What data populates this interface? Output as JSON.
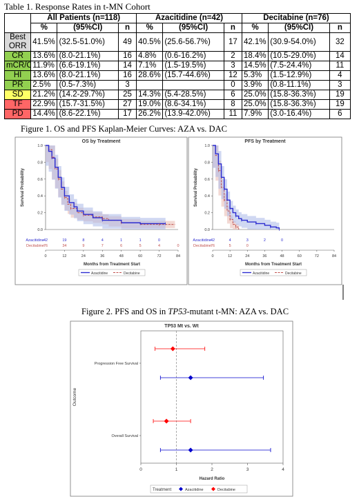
{
  "table": {
    "caption": "Table 1. Response Rates in t-MN Cohort",
    "groups": [
      "All Patients (n=118)",
      "Azacitidine (n=42)",
      "Decitabine (n=76)"
    ],
    "subheaders": [
      "%",
      "(95%CI)",
      "n"
    ],
    "rows": [
      {
        "label": "Best ORR",
        "color": "#d9d9d9",
        "cells": [
          "41.5%",
          "(32.5-51.0%)",
          "49",
          "40.5%",
          "(25.6-56.7%)",
          "17",
          "42.1%",
          "(30.9-54.0%)",
          "32"
        ]
      },
      {
        "label": "CR",
        "color": "#92d050",
        "cells": [
          "13.6%",
          "(8.0-21.1%)",
          "16",
          "4.8%",
          "(0.6-16.2%)",
          "2",
          "18.4%",
          "(10.5-29.0%)",
          "14"
        ]
      },
      {
        "label": "mCR/CRi",
        "color": "#92d050",
        "cells": [
          "11.9%",
          "(6.6-19.1%)",
          "14",
          "7.1%",
          "(1.5-19.5%)",
          "3",
          "14.5%",
          "(7.5-24.4%)",
          "11"
        ]
      },
      {
        "label": "HI",
        "color": "#92d050",
        "cells": [
          "13.6%",
          "(8.0-21.1%)",
          "16",
          "28.6%",
          "(15.7-44.6%)",
          "12",
          "5.3%",
          "(1.5-12.9%)",
          "4"
        ]
      },
      {
        "label": "PR",
        "color": "#92d050",
        "cells": [
          "2.5%",
          "(0.5-7.3%)",
          "3",
          "",
          "",
          "0",
          "3.9%",
          "(0.8-11.1%)",
          "3"
        ]
      },
      {
        "label": "SD",
        "color": "#ffff66",
        "cells": [
          "21.2%",
          "(14.2-29.7%)",
          "25",
          "14.3%",
          "(5.4-28.5%)",
          "6",
          "25.0%",
          "(15.8-36.3%)",
          "19"
        ]
      },
      {
        "label": "TF",
        "color": "#ff6666",
        "cells": [
          "22.9%",
          "(15.7-31.5%)",
          "27",
          "19.0%",
          "(8.6-34.1%)",
          "8",
          "25.0%",
          "(15.8-36.3%)",
          "19"
        ]
      },
      {
        "label": "PD",
        "color": "#ff6666",
        "cells": [
          "14.4%",
          "(8.6-22.1%)",
          "17",
          "26.2%",
          "(13.9-42.0%)",
          "11",
          "7.9%",
          "(3.0-16.4%)",
          "6"
        ]
      }
    ]
  },
  "figure1": {
    "caption": "Figure 1. OS and PFS Kaplan-Meier Curves: AZA vs. DAC",
    "at_risk_labels": [
      "Azacitidine",
      "Decitabine"
    ],
    "legend_labels": [
      "Azacitidine",
      "Decitabine"
    ],
    "colors": {
      "aza": "#2b2bd0",
      "dec": "#c0504d",
      "aza_band": "#a9b8e8",
      "dec_band": "#eab9b0"
    }
  },
  "figure2": {
    "caption_pre": "Figure 2. PFS and OS in ",
    "caption_em": "TP53",
    "caption_post": "-mutant t-MN: AZA vs. DAC",
    "legend_title": "Treatment",
    "legend_labels": [
      "Azacitidine",
      "Decitabine"
    ]
  },
  "chart_data": [
    {
      "type": "line",
      "title": "OS by Treatment",
      "xlabel": "Months from Treatment Start",
      "ylabel": "Survival Probability",
      "xlim": [
        0,
        84
      ],
      "ylim": [
        0,
        1.0
      ],
      "xticks": [
        0,
        12,
        24,
        36,
        48,
        60,
        72,
        84
      ],
      "yticks": [
        0.0,
        0.2,
        0.4,
        0.6,
        0.8,
        1.0
      ],
      "series": [
        {
          "name": "Azacitidine",
          "x": [
            0,
            2,
            4,
            6,
            8,
            10,
            12,
            15,
            18,
            20,
            24,
            30,
            36,
            48,
            60,
            72,
            76
          ],
          "y": [
            1.0,
            0.93,
            0.85,
            0.74,
            0.62,
            0.5,
            0.4,
            0.32,
            0.27,
            0.22,
            0.18,
            0.14,
            0.11,
            0.08,
            0.07,
            0.07,
            0.07
          ]
        },
        {
          "name": "Decitabine",
          "x": [
            0,
            2,
            4,
            6,
            8,
            10,
            12,
            14,
            16,
            20,
            24,
            30,
            36,
            40,
            48,
            60,
            72,
            82
          ],
          "y": [
            1.0,
            0.95,
            0.86,
            0.72,
            0.6,
            0.48,
            0.38,
            0.3,
            0.25,
            0.2,
            0.17,
            0.15,
            0.13,
            0.11,
            0.08,
            0.06,
            0.06,
            0.06
          ]
        }
      ],
      "at_risk": {
        "times": [
          0,
          12,
          24,
          36,
          48,
          60,
          72,
          84
        ],
        "Azacitidine": [
          "42",
          "19",
          "8",
          "4",
          "1",
          "1",
          "0",
          ""
        ],
        "Decitabine": [
          "76",
          "34",
          "9",
          "7",
          "6",
          "5",
          "4",
          "0"
        ]
      }
    },
    {
      "type": "line",
      "title": "PFS by Treatment",
      "xlabel": "Months from Treatment Start",
      "ylabel": "Survival Probability",
      "xlim": [
        0,
        84
      ],
      "ylim": [
        0,
        1.0
      ],
      "xticks": [
        0,
        12,
        24,
        36,
        48,
        60,
        72,
        84
      ],
      "yticks": [
        0.0,
        0.2,
        0.4,
        0.6,
        0.8,
        1.0
      ],
      "series": [
        {
          "name": "Azacitidine",
          "x": [
            0,
            2,
            4,
            6,
            8,
            10,
            12,
            14,
            16,
            18,
            20,
            24,
            30,
            36,
            40,
            44,
            46
          ],
          "y": [
            1.0,
            0.9,
            0.78,
            0.62,
            0.48,
            0.35,
            0.25,
            0.2,
            0.16,
            0.13,
            0.11,
            0.09,
            0.07,
            0.05,
            0.03,
            0.02,
            0.0
          ]
        },
        {
          "name": "Decitabine",
          "x": [
            0,
            2,
            4,
            6,
            8,
            10,
            12,
            14,
            16,
            18
          ],
          "y": [
            1.0,
            0.88,
            0.7,
            0.5,
            0.35,
            0.22,
            0.12,
            0.06,
            0.03,
            0.0
          ]
        }
      ],
      "at_risk": {
        "times": [
          0,
          12,
          24,
          36,
          48
        ],
        "Azacitidine": [
          "42",
          "4",
          "3",
          "2",
          "0"
        ],
        "Decitabine": [
          "76",
          "5",
          "0",
          "",
          ""
        ]
      }
    },
    {
      "type": "scatter",
      "title": "TP53 Mt vs. Wt",
      "xlabel": "Hazard Ratio",
      "ylabel": "Outcome",
      "xlim": [
        0,
        4
      ],
      "xticks": [
        0,
        1,
        2,
        3,
        4
      ],
      "reference_line": 1,
      "categories": [
        "Progression Free Survival",
        "Overall Survival"
      ],
      "series": [
        {
          "name": "Azacitidine",
          "color": "#0000cc",
          "points": [
            {
              "outcome": "Progression Free Survival",
              "hr": 1.4,
              "lower": 0.55,
              "upper": 3.45
            },
            {
              "outcome": "Overall Survival",
              "hr": 1.4,
              "lower": 0.55,
              "upper": 3.65
            }
          ]
        },
        {
          "name": "Decitabine",
          "color": "#ff0000",
          "points": [
            {
              "outcome": "Progression Free Survival",
              "hr": 0.9,
              "lower": 0.4,
              "upper": 1.8
            },
            {
              "outcome": "Overall Survival",
              "hr": 0.72,
              "lower": 0.35,
              "upper": 1.4
            }
          ]
        }
      ]
    }
  ]
}
